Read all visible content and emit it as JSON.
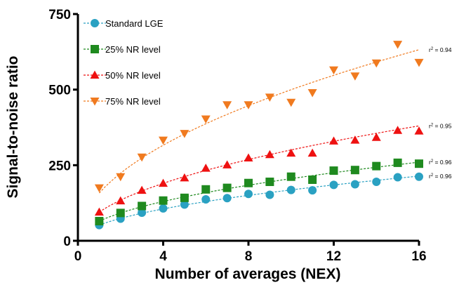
{
  "chart_data": {
    "type": "scatter",
    "xlabel": "Number of averages (NEX)",
    "ylabel": "Signal-to-noise ratio",
    "xlim": [
      0,
      16
    ],
    "ylim": [
      0,
      750
    ],
    "xticks": [
      0,
      4,
      8,
      12,
      16
    ],
    "yticks": [
      0,
      250,
      500,
      750
    ],
    "grid": false,
    "legend_position": "top-left",
    "series": [
      {
        "name": "Standard LGE",
        "marker": "circle",
        "color": "#2aa1c2",
        "x": [
          1,
          2,
          3,
          4,
          5,
          6,
          7,
          8,
          9,
          10,
          11,
          12,
          13,
          14,
          15,
          16
        ],
        "y": [
          52,
          73,
          93,
          107,
          120,
          137,
          141,
          155,
          152,
          168,
          167,
          185,
          187,
          195,
          210,
          212
        ],
        "r2": "0.96",
        "fit": {
          "a": 52,
          "b": 0.51
        }
      },
      {
        "name": "25% NR level",
        "marker": "square",
        "color": "#1f8a1f",
        "x": [
          1,
          2,
          3,
          4,
          5,
          6,
          7,
          8,
          9,
          10,
          11,
          12,
          13,
          14,
          15,
          16
        ],
        "y": [
          65,
          92,
          115,
          133,
          142,
          170,
          175,
          191,
          195,
          212,
          202,
          232,
          234,
          247,
          258,
          255
        ],
        "r2": "0.96",
        "fit": {
          "a": 65,
          "b": 0.5
        }
      },
      {
        "name": "50% NR level",
        "marker": "triangle-up",
        "color": "#ee1111",
        "x": [
          1,
          2,
          3,
          4,
          5,
          6,
          7,
          8,
          9,
          10,
          11,
          12,
          13,
          14,
          15,
          16
        ],
        "y": [
          95,
          132,
          167,
          190,
          208,
          240,
          251,
          274,
          285,
          290,
          290,
          330,
          333,
          342,
          365,
          363
        ],
        "r2": "0.95",
        "fit": {
          "a": 95,
          "b": 0.5
        }
      },
      {
        "name": "75% NR level",
        "marker": "triangle-down",
        "color": "#f07a1f",
        "x": [
          1,
          2,
          3,
          4,
          5,
          6,
          7,
          8,
          9,
          10,
          11,
          12,
          13,
          14,
          15,
          16
        ],
        "y": [
          175,
          212,
          277,
          333,
          355,
          403,
          450,
          450,
          475,
          458,
          490,
          565,
          545,
          588,
          650,
          590
        ],
        "r2": "0.94",
        "fit": {
          "a": 158,
          "b": 0.5
        }
      }
    ]
  }
}
